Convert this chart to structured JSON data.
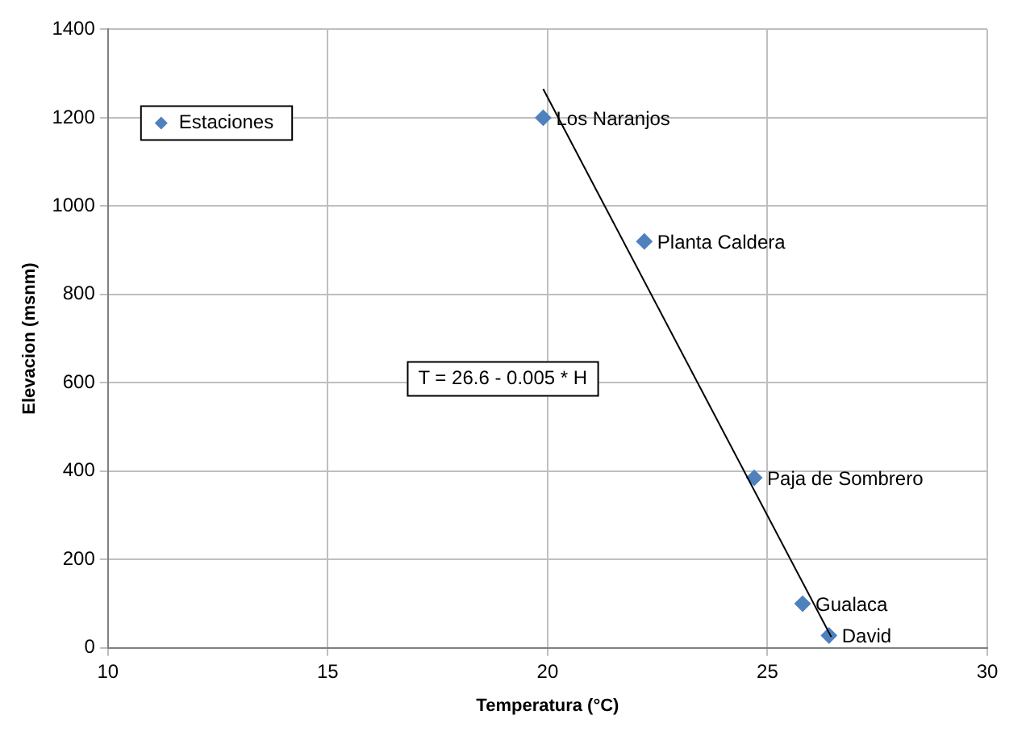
{
  "chart_data": {
    "type": "scatter",
    "xlabel": "Temperatura (°C)",
    "ylabel": "Elevacion (msnm)",
    "xlim": [
      10,
      30
    ],
    "xticks": [
      10,
      15,
      20,
      25,
      30
    ],
    "ylim": [
      0,
      1400
    ],
    "yticks": [
      0,
      200,
      400,
      600,
      800,
      1000,
      1200,
      1400
    ],
    "grid": true,
    "legend": "top left",
    "marker": "diamond",
    "series": [
      {
        "name": "Estaciones",
        "color": "#4f81bd",
        "x": [
          19.9,
          22.2,
          24.7,
          25.8,
          26.4
        ],
        "values": [
          1200,
          920,
          385,
          100,
          28
        ]
      },
      {
        "type": "line",
        "color": "#000000",
        "x": [
          19.9,
          26.45
        ],
        "values": [
          1265,
          25
        ],
        "marker": "none",
        "line_style": "solid"
      }
    ],
    "annotations": [
      "T = 26.6 - 0.005 * H",
      {
        "text": "Los Naranjos",
        "x": 19.9,
        "y": 1200
      },
      {
        "text": "Planta Caldera",
        "x": 22.2,
        "y": 920
      },
      {
        "text": "Paja de Sombrero",
        "x": 24.7,
        "y": 385
      },
      {
        "text": "Gualaca",
        "x": 25.8,
        "y": 100
      },
      {
        "text": "David",
        "x": 26.4,
        "y": 28
      }
    ]
  }
}
